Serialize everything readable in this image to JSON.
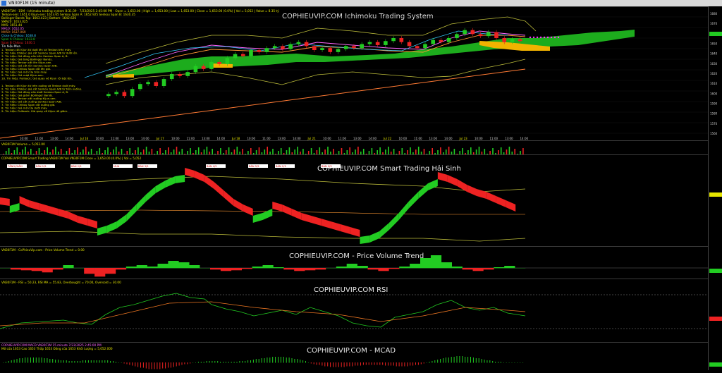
{
  "window": {
    "title": "VN30F1M (15 minute)"
  },
  "colors": {
    "bg": "#000000",
    "up": "#22cc22",
    "down": "#ee2222",
    "cloudUp": "#1fb51f",
    "cloudDown": "#f2b300",
    "text": "#cfcfcf",
    "yellow": "#e6e600",
    "magenta": "#ff33ff",
    "tenkan": "#ff66ff",
    "kijun": "#ff9933",
    "trend": "#ff7a33",
    "bb": "#bcbc3a"
  },
  "price_header": {
    "line1": "VN30F1M - 15M - Ichimoku trading system  8:31:39 - 7/23/2025 2:45:00 PM - Open = 1,653.00 | High = 1,653.00 | Low = 1,653.00 | Close = 1,653.00 (0.0%) | Vol = 5,052 | Value = 8.35 tỷ",
    "line2": "Tenkan-sen: 1651.0  Kijun-sen: 1653.65  Senkou Span A: 1652.925  Senkou Span B: 1630.35",
    "line3": "Bollinger Bands Top: 1663.423 | Bottom: 1642.626",
    "line4": "SMA20: 1653.025",
    "line5": "MA5: 1651.44",
    "line6": "MA10: 1652.05",
    "line7": "MA50: 1637.069",
    "line8": "Close & Chikou: 1638.8",
    "line9": "Span A Chikou: 1633.8",
    "line10": "Span B Chikou: 1630.1",
    "line11": "Tin hiệu Mua"
  },
  "buy_signals": [
    "1. Tenkan cắt Kijun từ dưới lên và Tenkan trên mây.",
    "2. Tín hiệu Chikou: giá cắt Senkou Span A/B từ dưới lên.",
    "3. Tín hiệu: Giá đóng cửa trên Senkou Span A, B.",
    "4. Tín hiệu: Giá tăng Bollinger Bands.",
    "5. Tín hiệu: Tenkan cắt lên Kijun-sen.",
    "6. Tín hiệu: Giá cắt lên Senkou Span A/B.",
    "7. Tín hiệu: Chikou Span cắt lên giá.",
    "8. Tín hiệu: Giá mở cửa trên mây.",
    "9. Tín hiệu: Giá vượt Kijun-sen.",
    "10. Tín hiệu: Pullback: Giá quay về Kijun rồi bật lên."
  ],
  "sell_signals": [
    "1. Tenkan cắt Kijun từ trên xuống và Tenkan dưới mây.",
    "2. Tín hiệu Chikou: giá cắt Senkou Span A/B từ trên xuống.",
    "3. Tín hiệu: Giá đóng cửa dưới Senkou Span A, B.",
    "4. Tín hiệu: Giá giảm Bollinger Bands.",
    "5. Tín hiệu: Tenkan cắt xuống Kijun-sen.",
    "6. Tín hiệu: Giá cắt xuống Senkou Span A/B.",
    "7. Tín hiệu: Chikou Span cắt xuống giá.",
    "8. Tín hiệu: Giá mở cửa dưới mây.",
    "9. Tín hiệu: Pullback: Giá quay về Kijun rồi giảm."
  ],
  "panels": {
    "ichimoku": {
      "title": "COPHIEUVIP.COM Ichimoku Trading System"
    },
    "volume": {
      "header": "VN30F1M  Volume = 5,052.00"
    },
    "smart": {
      "title": "COPHIEUVIP.COM Smart Trading Hải Sinh",
      "header": "COPHIEUVIP.COM Smart Trading VN30F1M  Vol  VN30F1M  Close = 1,653.00 (0.0%) | Vol = 5,052"
    },
    "pvt": {
      "title": "COPHIEUVIP.COM - Price Volume Trend",
      "header": "VN30F1M - CoPhieuVip.com - Price Volume Trend = 0.00"
    },
    "rsi": {
      "title": "COPHIEUVIP.COM RSI",
      "header": "VN30F1M - RSI = 50.23, RSI MA = 55.83, Overbought = 70.00, Oversold = 30.00"
    },
    "macd": {
      "title": "COPHIEUVIP.COM - MCAD",
      "header": "COPHIEUVIP.COM MACD  VN30F1M  15 minute  7/23/2025 2:45:00 PM",
      "header2": "Mở cửa 1653  Cao 1653  Thấp 1653  Đóng cửa 1653  Khối Lượng = 5,052.000"
    }
  },
  "x_labels": [
    "10:00",
    "11:00",
    "13:00",
    "14:00",
    "Jul 16",
    "10:00",
    "11:00",
    "13:00",
    "14:00",
    "Jul 17",
    "10:00",
    "11:00",
    "13:00",
    "14:00",
    "Jul 18",
    "10:00",
    "11:00",
    "13:00",
    "14:00",
    "Jul 21",
    "10:00",
    "11:00",
    "13:00",
    "14:00",
    "Jul 22",
    "10:00",
    "11:00",
    "13:00",
    "14:00",
    "Jul 23",
    "10:00",
    "11:00",
    "13:00",
    "14:00"
  ],
  "smart_labels": [
    "TĂNG/GIẢM",
    "BÁN 1/5",
    "BÁN 2/5",
    "MUA",
    "BÁN 3/5",
    "BÁN 4/5",
    "BÁN 5/5",
    "BÁN 1/3",
    "BÁN 2/3"
  ],
  "chart_data": {
    "type": "line",
    "title": "COPHIEUVIP.COM Ichimoku Trading System",
    "symbol": "VN30F1M",
    "interval": "15 minute",
    "last": {
      "open": 1653.0,
      "high": 1653.0,
      "low": 1653.0,
      "close": 1653.0,
      "volume": 5052
    },
    "ylim": [
      1560,
      1680
    ],
    "y_ticks": [
      1680,
      1670,
      1660,
      1650,
      1640,
      1630,
      1620,
      1610,
      1600,
      1590,
      1580,
      1570,
      1560
    ],
    "close_series": [
      1600,
      1602,
      1598,
      1605,
      1610,
      1612,
      1608,
      1615,
      1620,
      1618,
      1622,
      1628,
      1625,
      1632,
      1630,
      1636,
      1640,
      1638,
      1644,
      1642,
      1646,
      1648,
      1645,
      1650,
      1652,
      1648,
      1644,
      1646,
      1642,
      1645,
      1648,
      1646,
      1650,
      1652,
      1649,
      1653,
      1656,
      1652,
      1648,
      1646,
      1650,
      1654,
      1652,
      1656,
      1660,
      1664,
      1660,
      1658,
      1662,
      1656,
      1652,
      1655,
      1653
    ],
    "rsi": {
      "value": 50.23,
      "ma": 55.83,
      "overbought": 70,
      "oversold": 30
    },
    "pvt": {
      "value": 0.0
    }
  }
}
